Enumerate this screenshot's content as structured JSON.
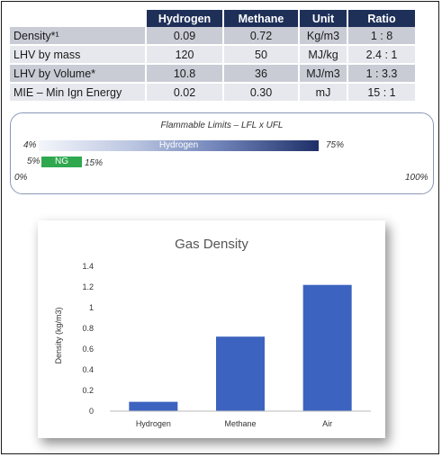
{
  "table": {
    "headers": [
      "",
      "Hydrogen",
      "Methane",
      "Unit",
      "Ratio"
    ],
    "rows": [
      [
        "Density*¹",
        "0.09",
        "0.72",
        "Kg/m3",
        "1 : 8"
      ],
      [
        "LHV by mass",
        "120",
        "50",
        "MJ/kg",
        "2.4 : 1"
      ],
      [
        "LHV by Volume*",
        "10.8",
        "36",
        "MJ/m3",
        "1 : 3.3"
      ],
      [
        "MIE – Min Ign Energy",
        "0.02",
        "0.30",
        "mJ",
        "15 : 1"
      ]
    ]
  },
  "flammable": {
    "title": "Flammable Limits – LFL x UFL",
    "hydrogen": {
      "label": "Hydrogen",
      "low": "4%",
      "high": "75%"
    },
    "ng": {
      "label": "NG",
      "low": "5%",
      "high": "15%"
    },
    "axis": {
      "min": "0%",
      "max": "100%"
    }
  },
  "chart_data": {
    "type": "bar",
    "title": "Gas Density",
    "ylabel": "Density (kg/m3)",
    "xlabel": "",
    "categories": [
      "Hydrogen",
      "Methane",
      "Air"
    ],
    "values": [
      0.09,
      0.72,
      1.22
    ],
    "ylim": [
      0,
      1.4
    ],
    "yticks": [
      "0",
      "0.2",
      "0.4",
      "0.6",
      "0.8",
      "1",
      "1.2",
      "1.4"
    ],
    "grid": false,
    "bar_color": "#3d63c0"
  }
}
